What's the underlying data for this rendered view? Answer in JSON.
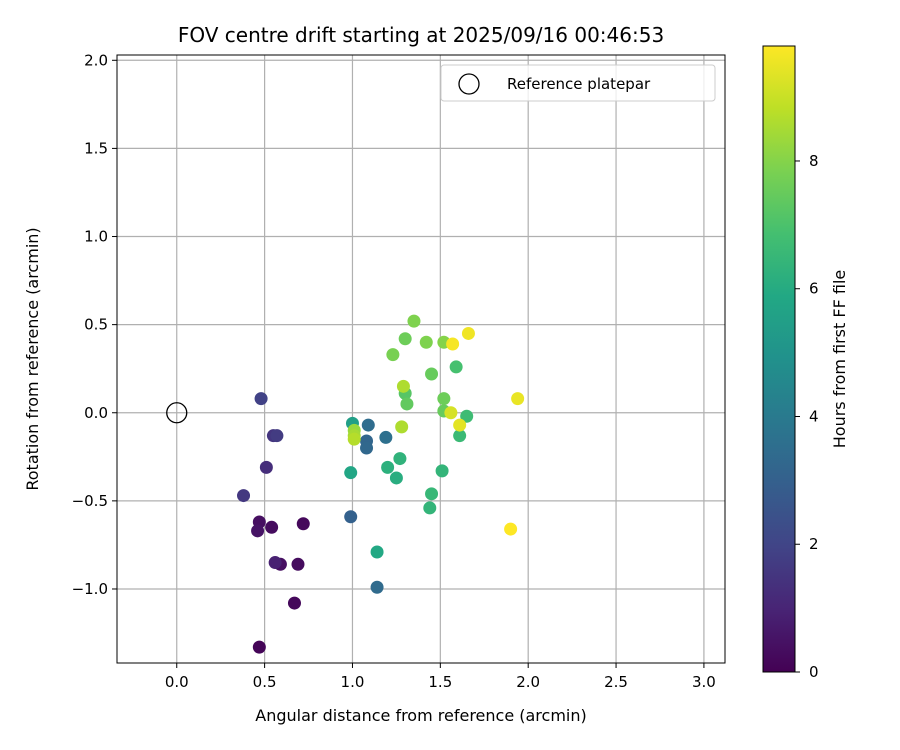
{
  "chart_data": {
    "type": "scatter",
    "title": "FOV centre drift starting at 2025/09/16 00:46:53",
    "xlabel": "Angular distance from reference (arcmin)",
    "ylabel": "Rotation from reference (arcmin)",
    "xlim": [
      -0.34,
      3.12
    ],
    "ylim": [
      -1.42,
      2.03
    ],
    "xticks": [
      0.0,
      0.5,
      1.0,
      1.5,
      2.0,
      2.5,
      3.0
    ],
    "xtick_labels": [
      "0.0",
      "0.5",
      "1.0",
      "1.5",
      "2.0",
      "2.5",
      "3.0"
    ],
    "yticks": [
      -1.0,
      -0.5,
      0.0,
      0.5,
      1.0,
      1.5,
      2.0
    ],
    "ytick_labels": [
      "−1.0",
      "−0.5",
      "0.0",
      "0.5",
      "1.0",
      "1.5",
      "2.0"
    ],
    "grid": true,
    "legend": {
      "position": "top-right",
      "entries": [
        "Reference platepar"
      ]
    },
    "reference_point": {
      "x": 0.0,
      "y": 0.0
    },
    "colorbar": {
      "label": "Hours from first FF file",
      "range": [
        0,
        9.8
      ],
      "ticks": [
        0,
        2,
        4,
        6,
        8
      ],
      "tick_labels": [
        "0",
        "2",
        "4",
        "6",
        "8"
      ],
      "colormap": "viridis"
    },
    "points": [
      {
        "x": 0.47,
        "y": -1.33,
        "c": 0.1
      },
      {
        "x": 0.67,
        "y": -1.08,
        "c": 0.2
      },
      {
        "x": 0.69,
        "y": -0.86,
        "c": 0.3
      },
      {
        "x": 0.59,
        "y": -0.86,
        "c": 0.4
      },
      {
        "x": 0.72,
        "y": -0.63,
        "c": 0.2
      },
      {
        "x": 0.54,
        "y": -0.65,
        "c": 0.3
      },
      {
        "x": 0.47,
        "y": -0.62,
        "c": 0.4
      },
      {
        "x": 0.46,
        "y": -0.67,
        "c": 0.5
      },
      {
        "x": 0.56,
        "y": -0.85,
        "c": 0.9
      },
      {
        "x": 0.38,
        "y": -0.47,
        "c": 1.6
      },
      {
        "x": 0.51,
        "y": -0.31,
        "c": 1.3
      },
      {
        "x": 0.55,
        "y": -0.13,
        "c": 1.5
      },
      {
        "x": 0.57,
        "y": -0.13,
        "c": 1.7
      },
      {
        "x": 0.48,
        "y": 0.08,
        "c": 1.9
      },
      {
        "x": 0.99,
        "y": -0.59,
        "c": 3.0
      },
      {
        "x": 1.14,
        "y": -0.99,
        "c": 3.4
      },
      {
        "x": 1.08,
        "y": -0.16,
        "c": 3.2
      },
      {
        "x": 1.08,
        "y": -0.2,
        "c": 3.3
      },
      {
        "x": 1.09,
        "y": -0.07,
        "c": 3.5
      },
      {
        "x": 1.19,
        "y": -0.14,
        "c": 3.6
      },
      {
        "x": 1.0,
        "y": -0.06,
        "c": 5.5
      },
      {
        "x": 0.99,
        "y": -0.34,
        "c": 5.8
      },
      {
        "x": 1.14,
        "y": -0.79,
        "c": 5.9
      },
      {
        "x": 1.2,
        "y": -0.31,
        "c": 6.2
      },
      {
        "x": 1.25,
        "y": -0.37,
        "c": 6.1
      },
      {
        "x": 1.27,
        "y": -0.26,
        "c": 6.3
      },
      {
        "x": 1.44,
        "y": -0.54,
        "c": 6.4
      },
      {
        "x": 1.45,
        "y": -0.46,
        "c": 6.5
      },
      {
        "x": 1.51,
        "y": -0.33,
        "c": 6.4
      },
      {
        "x": 1.61,
        "y": -0.13,
        "c": 6.6
      },
      {
        "x": 1.65,
        "y": -0.02,
        "c": 6.7
      },
      {
        "x": 1.59,
        "y": 0.26,
        "c": 6.9
      },
      {
        "x": 1.3,
        "y": 0.11,
        "c": 7.2
      },
      {
        "x": 1.31,
        "y": 0.05,
        "c": 7.4
      },
      {
        "x": 1.45,
        "y": 0.22,
        "c": 7.5
      },
      {
        "x": 1.52,
        "y": 0.08,
        "c": 7.6
      },
      {
        "x": 1.52,
        "y": 0.01,
        "c": 7.5
      },
      {
        "x": 1.23,
        "y": 0.33,
        "c": 7.8
      },
      {
        "x": 1.3,
        "y": 0.42,
        "c": 7.6
      },
      {
        "x": 1.42,
        "y": 0.4,
        "c": 7.9
      },
      {
        "x": 1.35,
        "y": 0.52,
        "c": 7.9
      },
      {
        "x": 1.52,
        "y": 0.4,
        "c": 8.0
      },
      {
        "x": 1.01,
        "y": -0.1,
        "c": 8.3
      },
      {
        "x": 1.01,
        "y": -0.13,
        "c": 8.5
      },
      {
        "x": 1.01,
        "y": -0.15,
        "c": 8.7
      },
      {
        "x": 1.28,
        "y": -0.08,
        "c": 8.6
      },
      {
        "x": 1.29,
        "y": 0.15,
        "c": 8.6
      },
      {
        "x": 1.56,
        "y": 0.0,
        "c": 9.2
      },
      {
        "x": 1.61,
        "y": -0.07,
        "c": 9.4
      },
      {
        "x": 1.57,
        "y": 0.39,
        "c": 9.7
      },
      {
        "x": 1.66,
        "y": 0.45,
        "c": 9.6
      },
      {
        "x": 1.94,
        "y": 0.08,
        "c": 9.5
      },
      {
        "x": 1.9,
        "y": -0.66,
        "c": 9.8
      }
    ]
  }
}
